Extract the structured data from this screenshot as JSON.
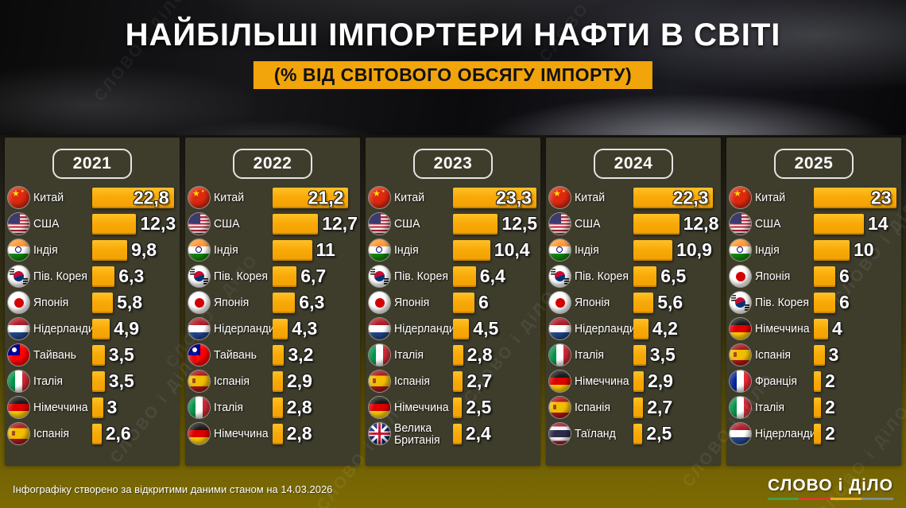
{
  "header": {
    "title": "НАЙБІЛЬШІ ІМПОРТЕРИ НАФТИ В СВІТІ",
    "subtitle": "(% ВІД СВІТОВОГО ОБСЯГУ ІМПОРТУ)"
  },
  "watermark": "СЛОВО і ДіЛО",
  "footer": {
    "note": "Інфографіку створено за відкритими даними станом на 14.03.2026",
    "logo": "СЛОВО і ДіЛО"
  },
  "colors": {
    "bar": "#F8A907",
    "banner": "#F2A40B",
    "panel_bg": "#3E3C2B",
    "background_bottom": "#7D6B03"
  },
  "chart_data": {
    "type": "bar",
    "title": "НАЙБІЛЬШІ ІМПОРТЕРИ НАФТИ В СВІТІ",
    "subtitle": "(% ВІД СВІТОВОГО ОБСЯГУ ІМПОРТУ)",
    "unit": "% of world oil import volume",
    "orientation": "horizontal",
    "value_axis_max": 23.3,
    "panels": [
      {
        "year": "2021",
        "rows": [
          {
            "country": "Китай",
            "flag": "china",
            "value": "22,8",
            "num": 22.8
          },
          {
            "country": "США",
            "flag": "usa",
            "value": "12,3",
            "num": 12.3
          },
          {
            "country": "Індія",
            "flag": "india",
            "value": "9,8",
            "num": 9.8
          },
          {
            "country": "Пів. Корея",
            "flag": "south-korea",
            "value": "6,3",
            "num": 6.3
          },
          {
            "country": "Японія",
            "flag": "japan",
            "value": "5,8",
            "num": 5.8
          },
          {
            "country": "Нідерланди",
            "flag": "netherlands",
            "value": "4,9",
            "num": 4.9
          },
          {
            "country": "Тайвань",
            "flag": "taiwan",
            "value": "3,5",
            "num": 3.5
          },
          {
            "country": "Італія",
            "flag": "italy",
            "value": "3,5",
            "num": 3.5
          },
          {
            "country": "Німеччина",
            "flag": "germany",
            "value": "3",
            "num": 3
          },
          {
            "country": "Іспанія",
            "flag": "spain",
            "value": "2,6",
            "num": 2.6
          }
        ]
      },
      {
        "year": "2022",
        "rows": [
          {
            "country": "Китай",
            "flag": "china",
            "value": "21,2",
            "num": 21.2
          },
          {
            "country": "США",
            "flag": "usa",
            "value": "12,7",
            "num": 12.7
          },
          {
            "country": "Індія",
            "flag": "india",
            "value": "11",
            "num": 11
          },
          {
            "country": "Пів. Корея",
            "flag": "south-korea",
            "value": "6,7",
            "num": 6.7
          },
          {
            "country": "Японія",
            "flag": "japan",
            "value": "6,3",
            "num": 6.3
          },
          {
            "country": "Нідерланди",
            "flag": "netherlands",
            "value": "4,3",
            "num": 4.3
          },
          {
            "country": "Тайвань",
            "flag": "taiwan",
            "value": "3,2",
            "num": 3.2
          },
          {
            "country": "Іспанія",
            "flag": "spain",
            "value": "2,9",
            "num": 2.9
          },
          {
            "country": "Італія",
            "flag": "italy",
            "value": "2,8",
            "num": 2.8
          },
          {
            "country": "Німеччина",
            "flag": "germany",
            "value": "2,8",
            "num": 2.8
          }
        ]
      },
      {
        "year": "2023",
        "rows": [
          {
            "country": "Китай",
            "flag": "china",
            "value": "23,3",
            "num": 23.3
          },
          {
            "country": "США",
            "flag": "usa",
            "value": "12,5",
            "num": 12.5
          },
          {
            "country": "Індія",
            "flag": "india",
            "value": "10,4",
            "num": 10.4
          },
          {
            "country": "Пів. Корея",
            "flag": "south-korea",
            "value": "6,4",
            "num": 6.4
          },
          {
            "country": "Японія",
            "flag": "japan",
            "value": "6",
            "num": 6
          },
          {
            "country": "Нідерланди",
            "flag": "netherlands",
            "value": "4,5",
            "num": 4.5
          },
          {
            "country": "Італія",
            "flag": "italy",
            "value": "2,8",
            "num": 2.8
          },
          {
            "country": "Іспанія",
            "flag": "spain",
            "value": "2,7",
            "num": 2.7
          },
          {
            "country": "Німеччина",
            "flag": "germany",
            "value": "2,5",
            "num": 2.5
          },
          {
            "country": "Велика Британія",
            "flag": "uk",
            "value": "2,4",
            "num": 2.4
          }
        ]
      },
      {
        "year": "2024",
        "rows": [
          {
            "country": "Китай",
            "flag": "china",
            "value": "22,3",
            "num": 22.3
          },
          {
            "country": "США",
            "flag": "usa",
            "value": "12,8",
            "num": 12.8
          },
          {
            "country": "Індія",
            "flag": "india",
            "value": "10,9",
            "num": 10.9
          },
          {
            "country": "Пів. Корея",
            "flag": "south-korea",
            "value": "6,5",
            "num": 6.5
          },
          {
            "country": "Японія",
            "flag": "japan",
            "value": "5,6",
            "num": 5.6
          },
          {
            "country": "Нідерланди",
            "flag": "netherlands",
            "value": "4,2",
            "num": 4.2
          },
          {
            "country": "Італія",
            "flag": "italy",
            "value": "3,5",
            "num": 3.5
          },
          {
            "country": "Німеччина",
            "flag": "germany",
            "value": "2,9",
            "num": 2.9
          },
          {
            "country": "Іспанія",
            "flag": "spain",
            "value": "2,7",
            "num": 2.7
          },
          {
            "country": "Таїланд",
            "flag": "thailand",
            "value": "2,5",
            "num": 2.5
          }
        ]
      },
      {
        "year": "2025",
        "rows": [
          {
            "country": "Китай",
            "flag": "china",
            "value": "23",
            "num": 23
          },
          {
            "country": "США",
            "flag": "usa",
            "value": "14",
            "num": 14
          },
          {
            "country": "Індія",
            "flag": "india",
            "value": "10",
            "num": 10
          },
          {
            "country": "Японія",
            "flag": "japan",
            "value": "6",
            "num": 6
          },
          {
            "country": "Пів. Корея",
            "flag": "south-korea",
            "value": "6",
            "num": 6
          },
          {
            "country": "Німеччина",
            "flag": "germany",
            "value": "4",
            "num": 4
          },
          {
            "country": "Іспанія",
            "flag": "spain",
            "value": "3",
            "num": 3
          },
          {
            "country": "Франція",
            "flag": "france",
            "value": "2",
            "num": 2
          },
          {
            "country": "Італія",
            "flag": "italy",
            "value": "2",
            "num": 2
          },
          {
            "country": "Нідерланди",
            "flag": "netherlands",
            "value": "2",
            "num": 2
          }
        ]
      }
    ]
  }
}
